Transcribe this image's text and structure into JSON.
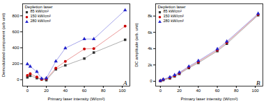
{
  "chart_data": [
    {
      "type": "line",
      "title": "A",
      "x_label": "Primary laser intensity (W/cm²)",
      "y_label": "Demodulated component (arb unit)",
      "x": [
        0,
        3,
        10,
        15,
        20,
        30,
        40,
        60,
        70,
        103
      ],
      "xlim": [
        -5,
        108
      ],
      "ylim": [
        -80,
        950
      ],
      "xticks": [
        0,
        20,
        40,
        60,
        80,
        100
      ],
      "yticks": [
        0,
        200,
        400,
        600,
        800
      ],
      "grid": false,
      "legend": "upper left",
      "legend_title": "Depletion laser",
      "series": [
        {
          "name": "85 kW/cm²",
          "color": "#333333",
          "marker": "square",
          "values": [
            30,
            50,
            20,
            5,
            -5,
            130,
            180,
            265,
            340,
            500
          ]
        },
        {
          "name": "150 kW/cm²",
          "color": "#cc0000",
          "marker": "circle",
          "values": [
            55,
            75,
            35,
            5,
            10,
            145,
            230,
            385,
            390,
            670
          ]
        },
        {
          "name": "280 kW/cm²",
          "color": "#2222cc",
          "marker": "triangle",
          "values": [
            195,
            165,
            100,
            15,
            20,
            230,
            395,
            510,
            510,
            870
          ]
        }
      ]
    },
    {
      "type": "line",
      "title": "B",
      "x_label": "Primary laser intensity (W/cm²)",
      "y_label": "DC amplitude (arb. unit)",
      "x": [
        0,
        3,
        10,
        15,
        20,
        30,
        40,
        60,
        70,
        103
      ],
      "xlim": [
        -5,
        108
      ],
      "ylim": [
        -600,
        9500
      ],
      "xticks": [
        0,
        20,
        40,
        60,
        80,
        100
      ],
      "yticks": [
        0,
        {
          "value": 2000,
          "label": "2k"
        },
        {
          "value": 4000,
          "label": "4k"
        },
        {
          "value": 6000,
          "label": "6k"
        },
        {
          "value": 8000,
          "label": "8k"
        }
      ],
      "grid": false,
      "legend": "upper left",
      "legend_title": "Depletion laser",
      "series": [
        {
          "name": "85 kW/cm²",
          "color": "#333333",
          "marker": "square",
          "values": [
            30,
            150,
            350,
            600,
            900,
            1620,
            2250,
            3700,
            4600,
            8100
          ]
        },
        {
          "name": "150 kW/cm²",
          "color": "#cc0000",
          "marker": "circle",
          "values": [
            50,
            200,
            430,
            680,
            1000,
            1720,
            2380,
            3820,
            4750,
            8200
          ]
        },
        {
          "name": "280 kW/cm²",
          "color": "#2222cc",
          "marker": "triangle",
          "values": [
            70,
            240,
            500,
            760,
            1080,
            1820,
            2500,
            3950,
            4880,
            8300
          ]
        }
      ]
    }
  ]
}
